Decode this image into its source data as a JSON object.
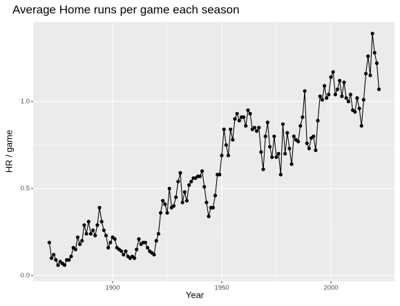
{
  "chart_data": {
    "type": "line",
    "title": "Average Home runs per game each season",
    "x_label": "Year",
    "y_label": "HR / game",
    "x": [
      1871,
      1872,
      1873,
      1874,
      1875,
      1876,
      1877,
      1878,
      1879,
      1880,
      1881,
      1882,
      1883,
      1884,
      1885,
      1886,
      1887,
      1888,
      1889,
      1890,
      1891,
      1892,
      1893,
      1894,
      1895,
      1896,
      1897,
      1898,
      1899,
      1900,
      1901,
      1902,
      1903,
      1904,
      1905,
      1906,
      1907,
      1908,
      1909,
      1910,
      1911,
      1912,
      1913,
      1914,
      1915,
      1916,
      1917,
      1918,
      1919,
      1920,
      1921,
      1922,
      1923,
      1924,
      1925,
      1926,
      1927,
      1928,
      1929,
      1930,
      1931,
      1932,
      1933,
      1934,
      1935,
      1936,
      1937,
      1938,
      1939,
      1940,
      1941,
      1942,
      1943,
      1944,
      1945,
      1946,
      1947,
      1948,
      1949,
      1950,
      1951,
      1952,
      1953,
      1954,
      1955,
      1956,
      1957,
      1958,
      1959,
      1960,
      1961,
      1962,
      1963,
      1964,
      1965,
      1966,
      1967,
      1968,
      1969,
      1970,
      1971,
      1972,
      1973,
      1974,
      1975,
      1976,
      1977,
      1978,
      1979,
      1980,
      1981,
      1982,
      1983,
      1984,
      1985,
      1986,
      1987,
      1988,
      1989,
      1990,
      1991,
      1992,
      1993,
      1994,
      1995,
      1996,
      1997,
      1998,
      1999,
      2000,
      2001,
      2002,
      2003,
      2004,
      2005,
      2006,
      2007,
      2008,
      2009,
      2010,
      2011,
      2012,
      2013,
      2014,
      2015,
      2016,
      2017,
      2018,
      2019,
      2020,
      2021,
      2022
    ],
    "series": [
      {
        "color": "#000000",
        "values": [
          0.19,
          0.1,
          0.12,
          0.09,
          0.06,
          0.08,
          0.07,
          0.06,
          0.09,
          0.09,
          0.11,
          0.16,
          0.15,
          0.22,
          0.18,
          0.2,
          0.29,
          0.24,
          0.31,
          0.24,
          0.26,
          0.23,
          0.29,
          0.39,
          0.31,
          0.26,
          0.23,
          0.16,
          0.19,
          0.22,
          0.21,
          0.16,
          0.15,
          0.14,
          0.12,
          0.14,
          0.11,
          0.1,
          0.11,
          0.1,
          0.15,
          0.21,
          0.18,
          0.19,
          0.19,
          0.16,
          0.14,
          0.13,
          0.12,
          0.2,
          0.24,
          0.36,
          0.43,
          0.41,
          0.36,
          0.5,
          0.39,
          0.4,
          0.45,
          0.54,
          0.59,
          0.42,
          0.48,
          0.43,
          0.52,
          0.54,
          0.56,
          0.56,
          0.57,
          0.57,
          0.6,
          0.51,
          0.42,
          0.34,
          0.39,
          0.39,
          0.46,
          0.58,
          0.58,
          0.69,
          0.84,
          0.75,
          0.69,
          0.84,
          0.78,
          0.9,
          0.93,
          0.89,
          0.91,
          0.91,
          0.86,
          0.95,
          0.93,
          0.84,
          0.85,
          0.83,
          0.85,
          0.71,
          0.61,
          0.8,
          0.88,
          0.74,
          0.68,
          0.8,
          0.68,
          0.7,
          0.58,
          0.87,
          0.7,
          0.82,
          0.73,
          0.64,
          0.8,
          0.78,
          0.77,
          0.86,
          0.91,
          1.06,
          0.76,
          0.73,
          0.79,
          0.8,
          0.72,
          0.89,
          1.03,
          1.01,
          1.09,
          1.02,
          1.04,
          1.14,
          1.17,
          1.04,
          1.07,
          1.12,
          1.03,
          1.11,
          1.02,
          1.0,
          1.04,
          0.95,
          0.94,
          1.02,
          0.96,
          0.86,
          1.01,
          1.16,
          1.26,
          1.15,
          1.39,
          1.28,
          1.22,
          1.07
        ]
      }
    ],
    "xlim": [
      1863.6,
      2029.1
    ],
    "ylim": [
      -0.032,
      1.456
    ],
    "xticks": [
      1900,
      1950,
      2000
    ],
    "yticks": [
      {
        "value": 0,
        "label": "0.0"
      },
      0.5,
      {
        "value": 1,
        "label": "1.0"
      }
    ],
    "grid": true,
    "background": "#ebebeb",
    "grid_color": "#ffffff"
  }
}
